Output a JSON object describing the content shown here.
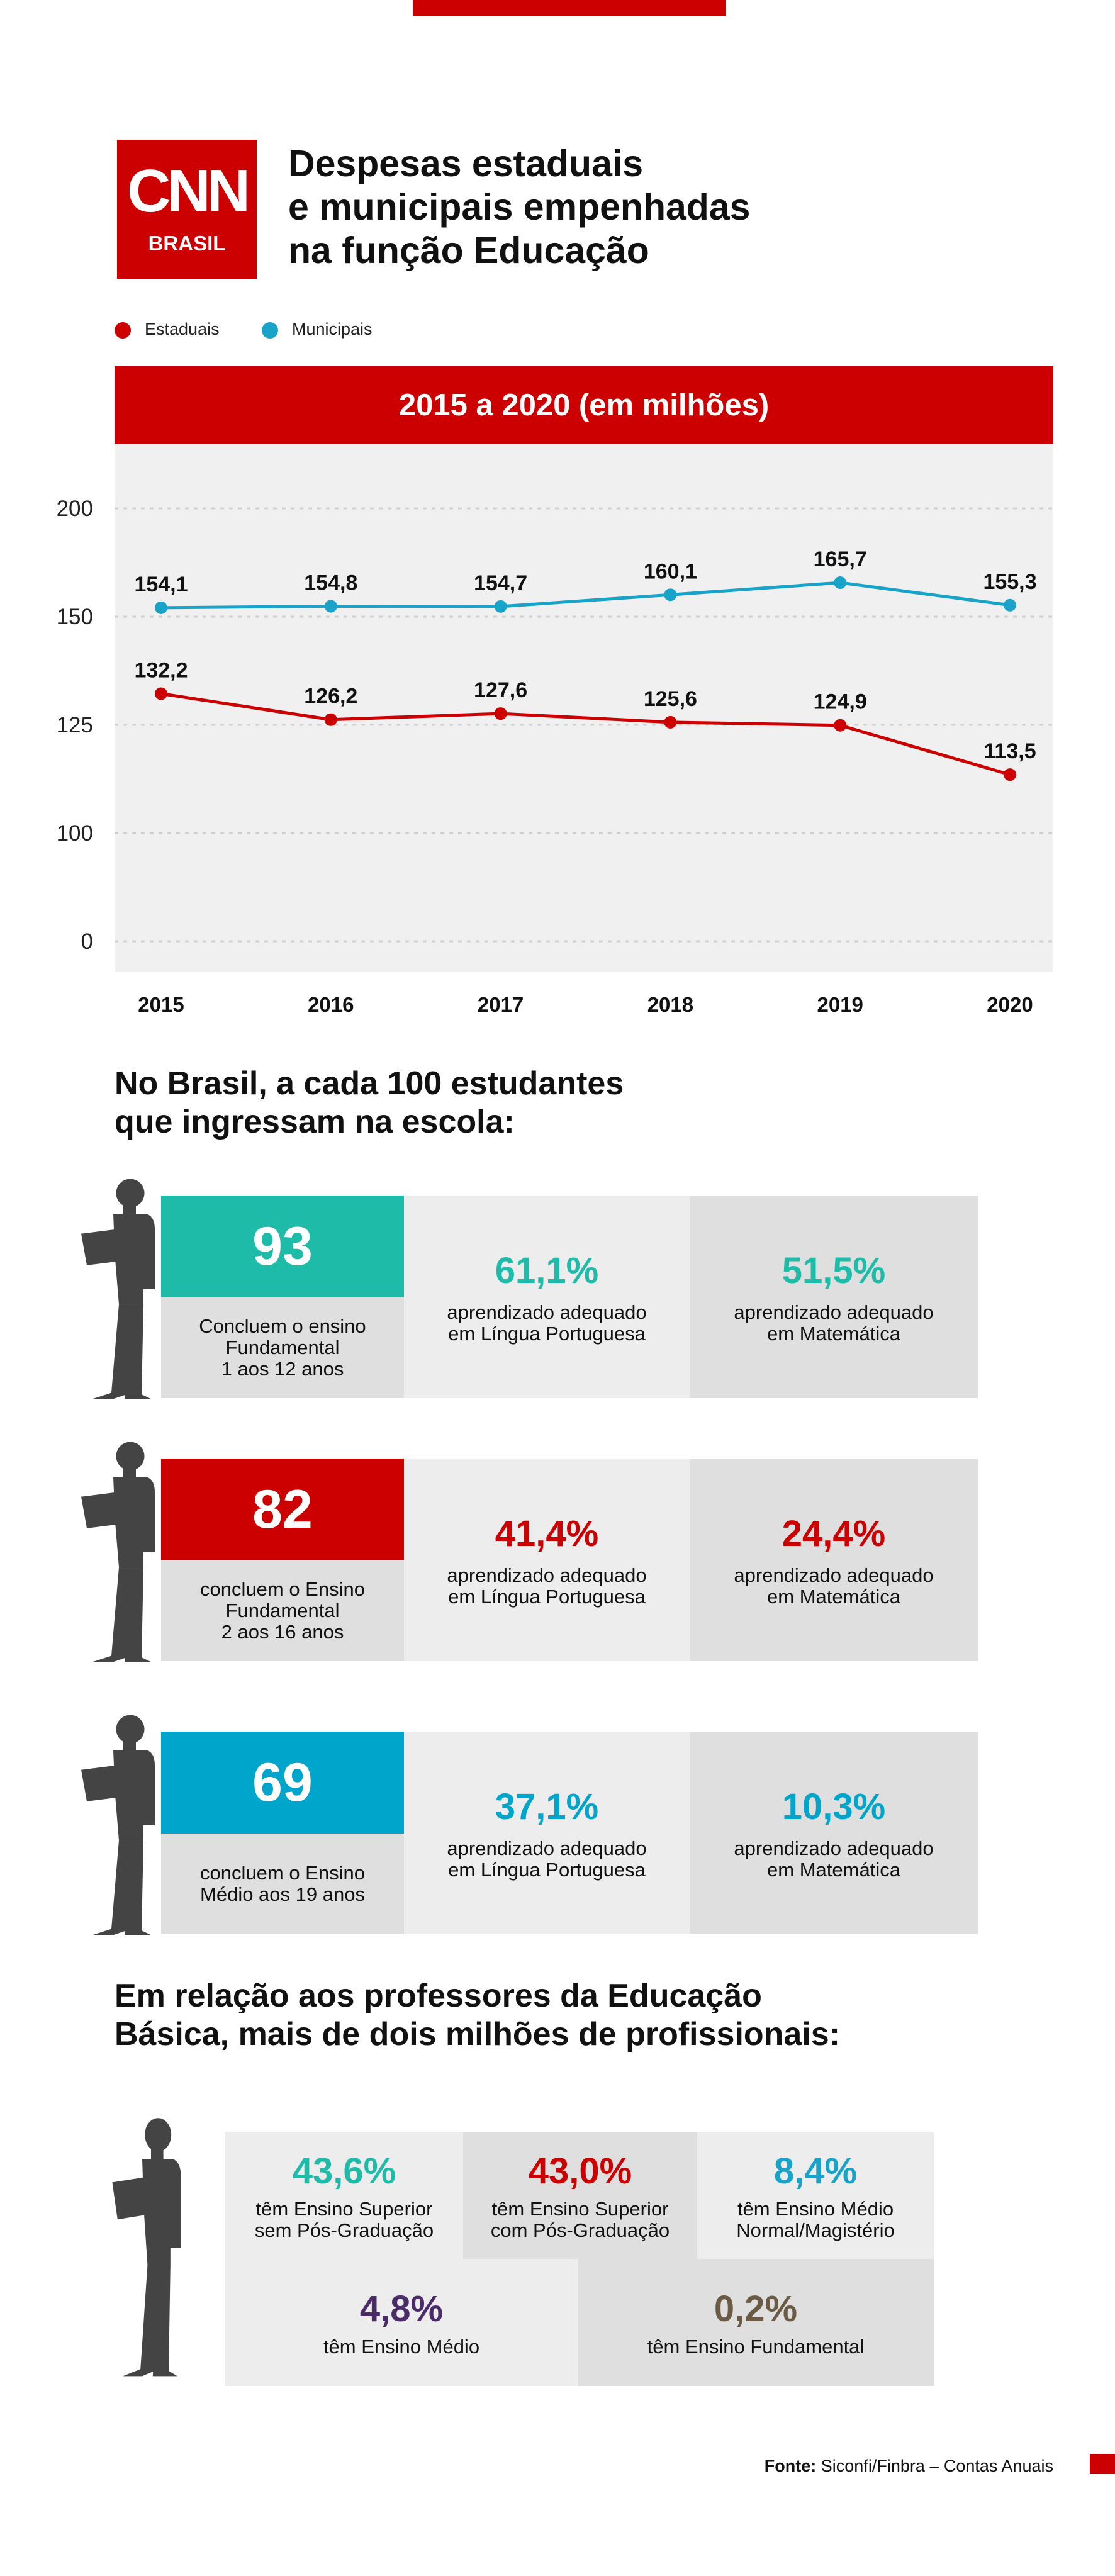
{
  "brand": {
    "logo_text": "CNN",
    "logo_sub": "BRASIL"
  },
  "title": {
    "line1": "Despesas estaduais",
    "line2": "e municipais empenhadas",
    "line3": "na função Educação"
  },
  "legend": {
    "estaduais": "Estaduais",
    "municipais": "Municipais"
  },
  "colors": {
    "red": "#cc0000",
    "blue": "#1aa3c9",
    "teal": "#1dbba8",
    "purple": "#4b2a6a",
    "brown": "#6b5a44"
  },
  "chart_data": {
    "type": "line",
    "title": "2015 a 2020 (em milhões)",
    "categories": [
      "2015",
      "2016",
      "2017",
      "2018",
      "2019",
      "2020"
    ],
    "y_ticks": [
      "200",
      "150",
      "125",
      "100",
      "0"
    ],
    "series": [
      {
        "name": "Municipais",
        "color": "#1aa3c9",
        "values": [
          154.1,
          154.8,
          154.7,
          160.1,
          165.7,
          155.3
        ],
        "labels": [
          "154,1",
          "154,8",
          "154,7",
          "160,1",
          "165,7",
          "155,3"
        ]
      },
      {
        "name": "Estaduais",
        "color": "#cc0000",
        "values": [
          132.2,
          126.2,
          127.6,
          125.6,
          124.9,
          113.5
        ],
        "labels": [
          "132,2",
          "126,2",
          "127,6",
          "125,6",
          "124,9",
          "113,5"
        ]
      }
    ],
    "grid": true
  },
  "students": {
    "heading_line1": "No Brasil, a cada 100 estudantes",
    "heading_line2": "que ingressam na escola:",
    "rows": [
      {
        "number": "93",
        "color": "#1dbba8",
        "caption_lines": [
          "Concluem o ensino",
          "Fundamental",
          "1 aos 12 anos"
        ],
        "port_pct": "61,1%",
        "port_label": [
          "aprendizado adequado",
          "em Língua Portuguesa"
        ],
        "mat_pct": "51,5%",
        "mat_label": [
          "aprendizado adequado",
          "em Matemática"
        ]
      },
      {
        "number": "82",
        "color": "#cc0000",
        "caption_lines": [
          "concluem o Ensino",
          "Fundamental",
          "2 aos 16 anos"
        ],
        "port_pct": "41,4%",
        "port_label": [
          "aprendizado adequado",
          "em Língua Portuguesa"
        ],
        "mat_pct": "24,4%",
        "mat_label": [
          "aprendizado adequado",
          "em Matemática"
        ]
      },
      {
        "number": "69",
        "color": "#00a5cc",
        "caption_lines": [
          "concluem o Ensino",
          "Médio aos 19 anos"
        ],
        "port_pct": "37,1%",
        "port_label": [
          "aprendizado adequado",
          "em Língua Portuguesa"
        ],
        "mat_pct": "10,3%",
        "mat_label": [
          "aprendizado adequado",
          "em Matemática"
        ]
      }
    ]
  },
  "teachers": {
    "heading_line1": "Em relação aos professores da Educação",
    "heading_line2": "Básica, mais de dois milhões de profissionais:",
    "items": [
      {
        "pct": "43,6%",
        "color": "#1dbba8",
        "label": [
          "têm Ensino Superior",
          "sem Pós-Graduação"
        ]
      },
      {
        "pct": "43,0%",
        "color": "#cc0000",
        "label": [
          "têm Ensino Superior",
          "com Pós-Graduação"
        ]
      },
      {
        "pct": "8,4%",
        "color": "#1aa3c9",
        "label": [
          "têm Ensino Médio",
          "Normal/Magistério"
        ]
      },
      {
        "pct": "4,8%",
        "color": "#4b2a6a",
        "label": [
          "têm Ensino Médio"
        ]
      },
      {
        "pct": "0,2%",
        "color": "#6b5a44",
        "label": [
          "têm Ensino Fundamental"
        ]
      }
    ]
  },
  "footer": {
    "source_label": "Fonte:",
    "source_text": "Siconfi/Finbra – Contas Anuais"
  }
}
